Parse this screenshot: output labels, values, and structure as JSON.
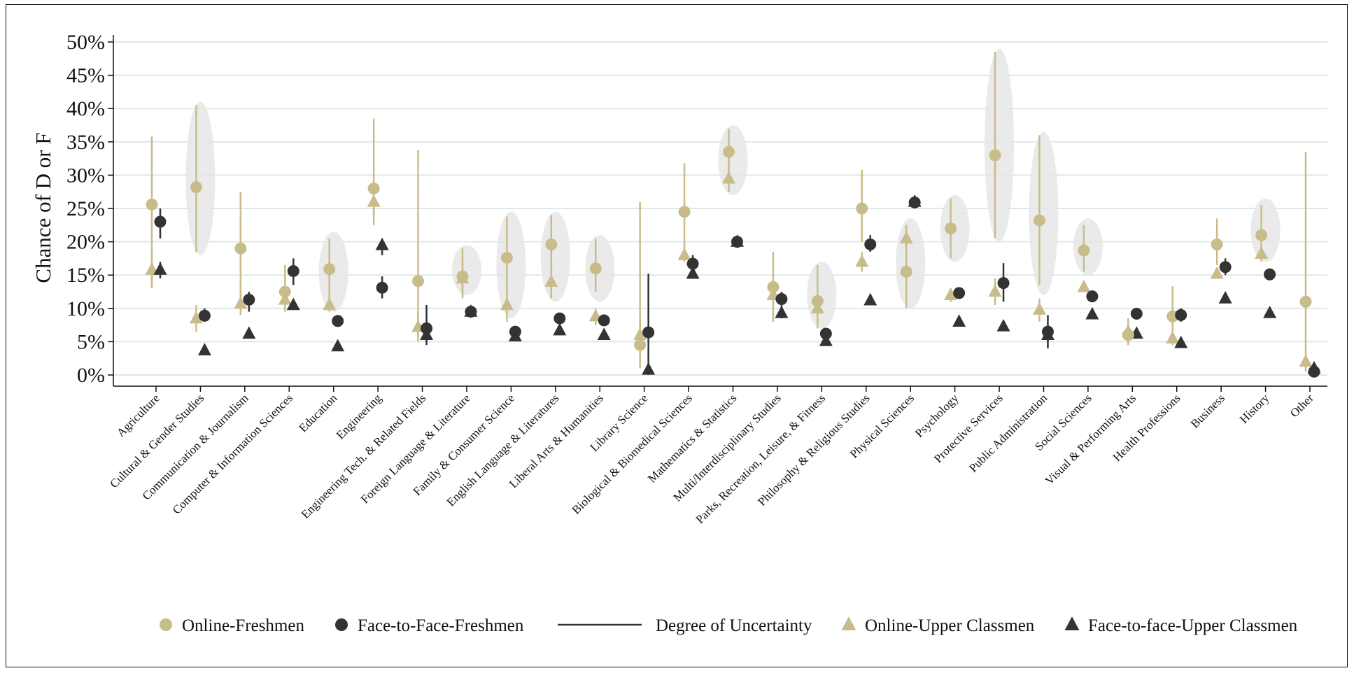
{
  "chart_data": {
    "type": "scatter",
    "ylabel": "Chance of D or F",
    "ylim": [
      0,
      50
    ],
    "yticks": [
      "0%",
      "5%",
      "10%",
      "15%",
      "20%",
      "25%",
      "30%",
      "35%",
      "40%",
      "45%",
      "50%"
    ],
    "grid": true,
    "legend_position": "bottom",
    "colors": {
      "online": "#c8bd8a",
      "face": "#333333",
      "ellipse": "#e6e6e6",
      "grid": "#dde9e6"
    },
    "categories": [
      "Agriculture",
      "Cultural & Gender Studies",
      "Communication & Journalism",
      "Computer & Information Sciences",
      "Education",
      "Engineering",
      "Engineering Tech. & Related Fields",
      "Foreign Language & Literature",
      "Family & Consumer Science",
      "English Language & Literatures",
      "Liberal Arts & Humanities",
      "Library Science",
      "Biological & Biomedical Sciences",
      "Mathematics & Statistics",
      "Multi/Interdisciplinary Studies",
      "Parks, Recreation, Leisure, & Fitness",
      "Philosophy & Religious Studies",
      "Physical Sciences",
      "Psychology",
      "Protective Services",
      "Public Administration",
      "Social Sciences",
      "Visual & Performing Arts",
      "Health Professions",
      "Business",
      "History",
      "Other"
    ],
    "series": [
      {
        "name": "Online-Freshmen",
        "marker": "circle",
        "values": [
          25.6,
          28.2,
          19.0,
          12.5,
          15.9,
          28.0,
          14.1,
          14.8,
          17.6,
          19.6,
          16.0,
          4.5,
          24.5,
          33.5,
          13.2,
          11.1,
          25.0,
          15.5,
          22.0,
          33.0,
          23.2,
          18.7,
          6.0,
          8.8,
          19.6,
          21.0,
          11.0
        ],
        "ci_low": [
          13.0,
          18.5,
          10.5,
          9.5,
          11.0,
          22.5,
          5.5,
          11.5,
          12.5,
          15.0,
          12.5,
          1.0,
          19.0,
          30.0,
          8.0,
          7.0,
          20.0,
          10.0,
          17.5,
          20.5,
          13.5,
          15.5,
          4.5,
          5.5,
          16.5,
          18.0,
          0.5
        ],
        "ci_high": [
          35.8,
          40.5,
          27.5,
          16.5,
          20.5,
          38.5,
          33.8,
          19.0,
          23.8,
          24.0,
          20.5,
          26.0,
          31.8,
          37.0,
          18.5,
          16.5,
          30.8,
          22.5,
          26.5,
          48.5,
          36.0,
          22.5,
          7.5,
          13.3,
          23.5,
          25.5,
          33.5
        ]
      },
      {
        "name": "Face-to-Face-Freshmen",
        "marker": "circle",
        "values": [
          23.0,
          8.9,
          11.3,
          15.6,
          8.1,
          13.1,
          7.0,
          9.5,
          6.5,
          8.5,
          8.2,
          6.4,
          16.7,
          20.0,
          11.4,
          6.2,
          19.6,
          25.9,
          12.3,
          13.8,
          6.5,
          11.8,
          9.2,
          9.0,
          16.2,
          15.1,
          0.5
        ],
        "ci_low": [
          20.5,
          8.0,
          9.5,
          13.5,
          7.5,
          11.5,
          4.5,
          9.0,
          6.0,
          8.0,
          7.5,
          0.0,
          15.5,
          19.5,
          10.0,
          5.5,
          18.5,
          25.0,
          11.5,
          11.0,
          4.0,
          11.0,
          8.5,
          8.0,
          15.0,
          14.5,
          0.0
        ],
        "ci_high": [
          25.0,
          10.0,
          12.5,
          17.5,
          9.0,
          14.8,
          10.5,
          10.0,
          7.0,
          9.0,
          9.0,
          15.2,
          18.0,
          20.5,
          12.5,
          7.0,
          21.0,
          26.8,
          13.0,
          16.8,
          9.0,
          12.5,
          10.0,
          10.0,
          17.5,
          16.0,
          1.0
        ]
      },
      {
        "name": "Online-Upper Classmen",
        "marker": "triangle",
        "values": [
          15.8,
          8.5,
          10.7,
          11.3,
          10.5,
          26.0,
          7.2,
          14.5,
          10.5,
          14.0,
          8.8,
          6.0,
          18.0,
          29.5,
          12.0,
          10.0,
          17.0,
          20.5,
          12.0,
          12.5,
          9.8,
          13.2,
          6.5,
          5.5,
          15.2,
          18.2,
          2.0
        ],
        "ci_low": [
          13.5,
          6.5,
          9.0,
          9.5,
          9.5,
          24.0,
          5.0,
          12.0,
          8.0,
          11.5,
          7.5,
          3.5,
          17.0,
          27.5,
          10.5,
          8.0,
          15.5,
          19.0,
          11.0,
          10.5,
          8.0,
          12.5,
          4.5,
          4.5,
          14.5,
          17.0,
          1.0
        ],
        "ci_high": [
          17.5,
          10.5,
          12.5,
          13.5,
          11.5,
          28.0,
          9.5,
          17.0,
          13.0,
          16.5,
          10.0,
          8.5,
          19.0,
          31.5,
          13.5,
          12.0,
          18.5,
          22.5,
          13.0,
          14.5,
          11.5,
          14.0,
          8.5,
          6.5,
          16.0,
          19.5,
          3.0
        ]
      },
      {
        "name": "Face-to-face-Upper Classmen",
        "marker": "triangle",
        "values": [
          15.8,
          3.7,
          6.2,
          10.5,
          4.3,
          19.5,
          6.0,
          9.5,
          5.8,
          6.7,
          6.0,
          0.8,
          15.2,
          20.0,
          9.3,
          5.1,
          11.2,
          26.0,
          8.0,
          7.3,
          6.0,
          9.1,
          6.2,
          4.8,
          11.5,
          9.3,
          1.0
        ],
        "ci_low": [
          14.5,
          3.2,
          5.7,
          10.0,
          3.8,
          18.0,
          5.0,
          9.0,
          5.3,
          6.2,
          5.5,
          0.0,
          14.5,
          19.5,
          8.5,
          4.5,
          10.5,
          25.3,
          7.5,
          6.8,
          5.0,
          8.6,
          5.7,
          4.3,
          11.0,
          8.8,
          0.5
        ],
        "ci_high": [
          17.0,
          4.2,
          6.7,
          11.0,
          4.8,
          20.5,
          7.0,
          10.0,
          6.3,
          7.2,
          6.5,
          1.6,
          16.0,
          20.5,
          10.0,
          5.7,
          12.0,
          26.8,
          8.5,
          7.8,
          7.0,
          9.6,
          6.7,
          5.3,
          12.0,
          9.8,
          1.5
        ]
      }
    ],
    "uncertainty_ellipses": [
      {
        "category": "Cultural & Gender Studies",
        "low": 18.0,
        "high": 41.0
      },
      {
        "category": "Education",
        "low": 9.5,
        "high": 21.5
      },
      {
        "category": "Foreign Language & Literature",
        "low": 12.0,
        "high": 19.5
      },
      {
        "category": "Family & Consumer Science",
        "low": 8.5,
        "high": 24.5
      },
      {
        "category": "English Language & Literatures",
        "low": 11.0,
        "high": 24.5
      },
      {
        "category": "Liberal Arts & Humanities",
        "low": 11.0,
        "high": 21.0
      },
      {
        "category": "Mathematics & Statistics",
        "low": 27.0,
        "high": 37.5
      },
      {
        "category": "Parks, Recreation, Leisure, & Fitness",
        "low": 7.0,
        "high": 17.0
      },
      {
        "category": "Physical Sciences",
        "low": 10.0,
        "high": 23.5
      },
      {
        "category": "Psychology",
        "low": 17.0,
        "high": 27.0
      },
      {
        "category": "Protective Services",
        "low": 20.0,
        "high": 49.0
      },
      {
        "category": "Public Administration",
        "low": 12.0,
        "high": 36.5
      },
      {
        "category": "Social Sciences",
        "low": 15.0,
        "high": 23.5
      },
      {
        "category": "History",
        "low": 17.0,
        "high": 26.5
      }
    ]
  },
  "legend": {
    "items": [
      {
        "label": "Online-Freshmen",
        "marker": "circle",
        "color": "#c8bd8a"
      },
      {
        "label": "Face-to-Face-Freshmen",
        "marker": "circle",
        "color": "#333333"
      },
      {
        "label": "Degree of Uncertainty",
        "marker": "line",
        "color": "#333333"
      },
      {
        "label": "Online-Upper Classmen",
        "marker": "triangle",
        "color": "#c8bd8a"
      },
      {
        "label": "Face-to-face-Upper Classmen",
        "marker": "triangle",
        "color": "#333333"
      }
    ]
  }
}
